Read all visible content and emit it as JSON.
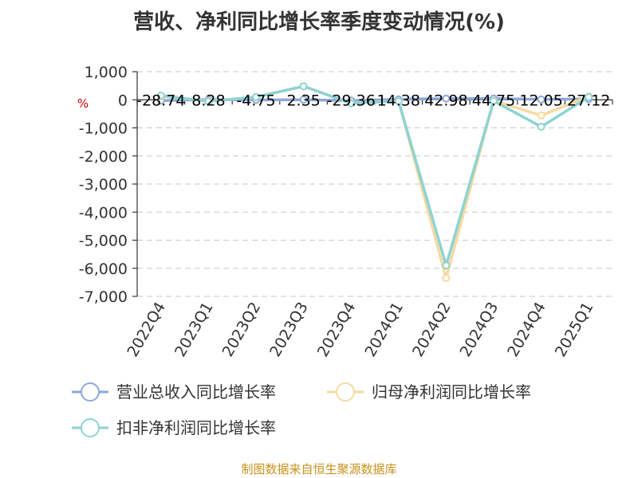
{
  "chart_data": {
    "type": "line",
    "title": "营收、净利同比增长率季度变动情况(%)",
    "unit_label": "%",
    "source": "制图数据来自恒生聚源数据库",
    "categories": [
      "2022Q4",
      "2023Q1",
      "2023Q2",
      "2023Q3",
      "2023Q4",
      "2024Q1",
      "2024Q2",
      "2024Q3",
      "2024Q4",
      "2025Q1"
    ],
    "ylim": [
      -7000,
      1000
    ],
    "yticks": [
      1000,
      0,
      -1000,
      -2000,
      -3000,
      -4000,
      -5000,
      -6000,
      -7000
    ],
    "ytick_labels": [
      "1,000",
      "0",
      "-1,000",
      "-2,000",
      "-3,000",
      "-4,000",
      "-5,000",
      "-6,000",
      "-7,000"
    ],
    "grid": true,
    "legend_position": "bottom",
    "series": [
      {
        "name": "营业总收入同比增长率",
        "color": "#8fa8d8",
        "values": [
          -28.74,
          8.28,
          -4.75,
          2.35,
          -29.36,
          14.38,
          42.98,
          44.75,
          12.05,
          27.12
        ],
        "labels": [
          "-28.74",
          "8.28",
          "-4.75",
          "2.35",
          "-29.36",
          "14.38",
          "42.98",
          "44.75",
          "12.05",
          "27.12"
        ]
      },
      {
        "name": "归母净利润同比增长率",
        "color": "#f7d9a0",
        "values": [
          120,
          -40,
          90,
          480,
          -120,
          -40,
          -6350,
          -30,
          -560,
          120
        ]
      },
      {
        "name": "扣非净利润同比增长率",
        "color": "#8dd3d3",
        "values": [
          150,
          -60,
          100,
          480,
          -130,
          -50,
          -5900,
          -40,
          -960,
          100
        ]
      }
    ]
  }
}
